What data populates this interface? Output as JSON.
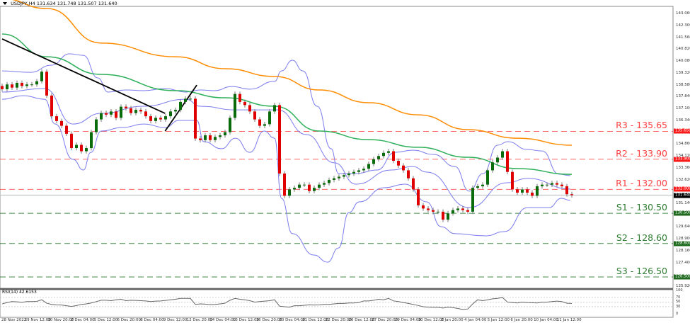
{
  "header": {
    "symbol": "USDJPY,H4",
    "open": "131.634",
    "high": "131.748",
    "low": "131.507",
    "close": "131.640"
  },
  "rsi": {
    "label": "RSI(14) 42.6153",
    "scale": [
      "100",
      "70",
      "50",
      "30",
      "0"
    ]
  },
  "colors": {
    "bull": "#0a6b0a",
    "bear": "#e00000",
    "wick": "#777777",
    "ma_slow": "#ff8c00",
    "ma_fast": "#2eb05a",
    "bands": "#7b7bef",
    "resistance": "#ff4040",
    "support": "#2e7d32",
    "trend": "#000000"
  },
  "chart_data": {
    "type": "candlestick",
    "title": "USDJPY,H4",
    "ylim": [
      125.92,
      143.06
    ],
    "y_ticks": [
      "143.060",
      "142.300",
      "141.560",
      "140.820",
      "140.080",
      "139.320",
      "138.580",
      "137.840",
      "137.100",
      "136.340",
      "134.860",
      "134.120",
      "133.360",
      "132.620",
      "131.140",
      "129.640",
      "128.900",
      "128.160",
      "127.400",
      "125.920"
    ],
    "x_tick_labels": [
      "28 Nov 2022",
      "29 Nov 12:00",
      "30 Nov 20:00",
      "2 Dec 04:00",
      "5 Dec 12:00",
      "6 Dec 20:00",
      "8 Dec 04:00",
      "9 Dec 12:00",
      "12 Dec 20:00",
      "14 Dec 04:00",
      "15 Dec 12:00",
      "16 Dec 20:00",
      "20 Dec 04:00",
      "21 Dec 12:00",
      "22 Dec 20:00",
      "26 Dec 12:00",
      "27 Dec 20:00",
      "29 Dec 04:00",
      "30 Dec 12:00",
      "2 Jan 20:00",
      "4 Jan 04:00",
      "5 Jan 12:00",
      "6 Jan 20:00",
      "10 Jan 04:00",
      "11 Jan 12:00"
    ],
    "closes": [
      138.3,
      138.6,
      138.4,
      138.7,
      138.5,
      138.6,
      138.6,
      138.8,
      139.4,
      137.9,
      136.6,
      136.3,
      136.0,
      135.5,
      134.6,
      134.8,
      134.4,
      134.6,
      135.6,
      136.4,
      136.8,
      136.7,
      136.9,
      136.5,
      137.2,
      137.1,
      136.8,
      137.0,
      136.9,
      136.6,
      136.3,
      136.5,
      136.4,
      136.6,
      136.9,
      137.0,
      137.5,
      137.7,
      137.7,
      135.2,
      135.1,
      135.4,
      135.1,
      135.3,
      135.4,
      135.6,
      136.5,
      138.0,
      137.5,
      137.3,
      136.9,
      136.4,
      136.0,
      136.1,
      136.9,
      137.3,
      133.0,
      131.6,
      132.0,
      132.1,
      132.3,
      132.3,
      131.9,
      132.1,
      132.3,
      132.4,
      132.6,
      132.7,
      132.8,
      132.9,
      133.0,
      133.1,
      133.2,
      133.3,
      133.6,
      133.9,
      134.1,
      134.3,
      134.4,
      133.8,
      133.5,
      133.2,
      132.7,
      132.0,
      131.0,
      130.8,
      130.7,
      130.6,
      130.6,
      130.1,
      130.5,
      130.7,
      130.8,
      130.7,
      130.6,
      132.1,
      132.2,
      132.3,
      133.2,
      133.7,
      134.0,
      134.4,
      133.1,
      132.0,
      131.8,
      132.0,
      131.8,
      131.6,
      132.2,
      132.3,
      132.3,
      132.4,
      132.3,
      132.2,
      131.7,
      131.64
    ],
    "ma_slow": [
      [
        0,
        143.99
      ],
      [
        9,
        143.37
      ],
      [
        20,
        141.2
      ],
      [
        35,
        140.34
      ],
      [
        45,
        139.59
      ],
      [
        55,
        139.1
      ],
      [
        64,
        138.25
      ],
      [
        74,
        137.45
      ],
      [
        84,
        136.69
      ],
      [
        94,
        135.76
      ],
      [
        104,
        135.22
      ],
      [
        115,
        134.78
      ]
    ],
    "ma_fast": [
      [
        0,
        141.77
      ],
      [
        9,
        140.34
      ],
      [
        20,
        139.23
      ],
      [
        35,
        138.21
      ],
      [
        45,
        137.76
      ],
      [
        55,
        137.23
      ],
      [
        64,
        135.67
      ],
      [
        74,
        135.13
      ],
      [
        84,
        134.65
      ],
      [
        94,
        134.02
      ],
      [
        104,
        133.31
      ],
      [
        115,
        132.95
      ]
    ],
    "bb_upper": [
      [
        0,
        139.45
      ],
      [
        5.7,
        139.36
      ],
      [
        10,
        139.81
      ],
      [
        13.6,
        140.52
      ],
      [
        16.4,
        140.43
      ],
      [
        19.3,
        139.01
      ],
      [
        21.4,
        138.12
      ],
      [
        25,
        138.25
      ],
      [
        28.6,
        138.21
      ],
      [
        32.9,
        138.34
      ],
      [
        37.1,
        138.12
      ],
      [
        40,
        138.25
      ],
      [
        42.9,
        138.21
      ],
      [
        46.4,
        138.47
      ],
      [
        50,
        138.3
      ],
      [
        55,
        138.79
      ],
      [
        56.4,
        139.45
      ],
      [
        58.6,
        140.12
      ],
      [
        60.7,
        139.45
      ],
      [
        63.6,
        137.23
      ],
      [
        66.4,
        134.56
      ],
      [
        67.9,
        133.0
      ],
      [
        71.4,
        133.0
      ],
      [
        75.7,
        133.22
      ],
      [
        79.3,
        134.33
      ],
      [
        82.9,
        134.47
      ],
      [
        87.1,
        134.2
      ],
      [
        91.4,
        133.44
      ],
      [
        94.3,
        131.89
      ],
      [
        97.1,
        133.0
      ],
      [
        100,
        134.78
      ],
      [
        102.1,
        135.0
      ],
      [
        106,
        134.51
      ],
      [
        109,
        134.42
      ],
      [
        112.4,
        132.96
      ],
      [
        114.7,
        132.87
      ]
    ],
    "bb_middle": [
      [
        0,
        138.12
      ],
      [
        8.6,
        138.34
      ],
      [
        14.3,
        136.11
      ],
      [
        20,
        136.78
      ],
      [
        28.6,
        137.23
      ],
      [
        37.1,
        137.67
      ],
      [
        40,
        137.23
      ],
      [
        47.1,
        137.0
      ],
      [
        55.7,
        137.0
      ],
      [
        61.4,
        135.45
      ],
      [
        67.1,
        133.67
      ],
      [
        71.4,
        132.33
      ],
      [
        78.6,
        133.22
      ],
      [
        82.9,
        133.44
      ],
      [
        85.7,
        133.09
      ],
      [
        94.3,
        130.86
      ],
      [
        101.9,
        132.42
      ],
      [
        106.1,
        132.69
      ],
      [
        114.7,
        132.02
      ]
    ],
    "bb_lower": [
      [
        0,
        137.67
      ],
      [
        4.3,
        137.89
      ],
      [
        8.6,
        137.67
      ],
      [
        10.7,
        136.11
      ],
      [
        14.3,
        133.89
      ],
      [
        16.4,
        133.22
      ],
      [
        17.9,
        134.33
      ],
      [
        20,
        135.67
      ],
      [
        24.3,
        135.89
      ],
      [
        28.6,
        136.11
      ],
      [
        32.9,
        135.89
      ],
      [
        35.7,
        136.34
      ],
      [
        39.3,
        136.34
      ],
      [
        40.7,
        135.0
      ],
      [
        44.3,
        134.56
      ],
      [
        47.1,
        135.22
      ],
      [
        50,
        134.33
      ],
      [
        52.9,
        135.67
      ],
      [
        55,
        135.22
      ],
      [
        56.4,
        131.44
      ],
      [
        58.6,
        129.22
      ],
      [
        62.9,
        127.88
      ],
      [
        65.7,
        127.43
      ],
      [
        67.9,
        128.32
      ],
      [
        70,
        130.55
      ],
      [
        72.1,
        131.22
      ],
      [
        77.1,
        132.11
      ],
      [
        81.4,
        132.33
      ],
      [
        85.7,
        131.22
      ],
      [
        88.6,
        129.66
      ],
      [
        91.4,
        129.22
      ],
      [
        97.6,
        129.08
      ],
      [
        101.4,
        129.35
      ],
      [
        106.1,
        130.86
      ],
      [
        110.4,
        130.86
      ],
      [
        112.9,
        131.44
      ],
      [
        114.7,
        131.31
      ]
    ],
    "trendlines": [
      [
        [
          0,
          141.46
        ],
        [
          32.9,
          136.78
        ]
      ],
      [
        [
          32.9,
          135.67
        ],
        [
          39.3,
          138.56
        ]
      ]
    ],
    "levels": [
      {
        "label": "R3 - 135.65",
        "tag": "135.650",
        "price": 135.65,
        "kind": "resistance"
      },
      {
        "label": "R2 - 133.90",
        "tag": "133.900",
        "price": 133.9,
        "kind": "resistance"
      },
      {
        "label": "R1 - 132.00",
        "tag": "132.000",
        "price": 132.0,
        "kind": "resistance"
      },
      {
        "label": "S1 - 130.50",
        "tag": "130.500",
        "price": 130.5,
        "kind": "support"
      },
      {
        "label": "S2 - 128.60",
        "tag": "128.600",
        "price": 128.6,
        "kind": "support"
      },
      {
        "label": "S3 - 126.50",
        "tag": "126.500",
        "price": 126.5,
        "kind": "support"
      }
    ],
    "current_price": {
      "tag": "131.640",
      "price": 131.64
    },
    "rsi_values": [
      42,
      48,
      52,
      51,
      49,
      52,
      52,
      53,
      60,
      45,
      40,
      38,
      37,
      34,
      31,
      35,
      40,
      42,
      46,
      52,
      58,
      58,
      56,
      60,
      62,
      56,
      58,
      57,
      56,
      55,
      52,
      54,
      55,
      57,
      60,
      62,
      66,
      66,
      66,
      40,
      42,
      41,
      39,
      40,
      42,
      45,
      58,
      66,
      62,
      60,
      56,
      50,
      52,
      54,
      56,
      60,
      32,
      30,
      28,
      34,
      34,
      36,
      38,
      37,
      38,
      40,
      40,
      42,
      44,
      44,
      46,
      46,
      48,
      55,
      55,
      58,
      62,
      60,
      66,
      55,
      52,
      48,
      44,
      40,
      35,
      30,
      28,
      27,
      27,
      24,
      28,
      26,
      22,
      18,
      20,
      42,
      60,
      56,
      60,
      64,
      66,
      70,
      50,
      48,
      46,
      50,
      48,
      47,
      46,
      50,
      50,
      52,
      54,
      52,
      45,
      44
    ]
  }
}
